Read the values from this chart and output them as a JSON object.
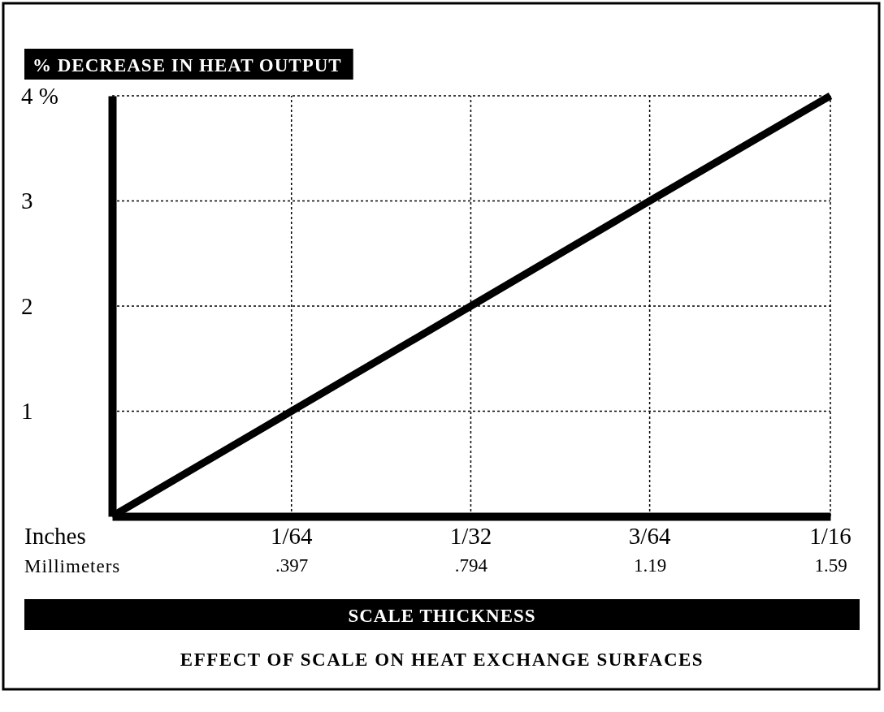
{
  "chart_data": {
    "type": "line",
    "title": "EFFECT OF SCALE ON HEAT EXCHANGE SURFACES",
    "ylabel": "% DECREASE IN HEAT OUTPUT",
    "xlabel": "SCALE THICKNESS",
    "annotations": [
      "Inches",
      "Millimeters",
      "1/64",
      "1/32",
      "3/64",
      "1/16"
    ],
    "x": [
      0,
      0.397,
      0.794,
      1.19,
      1.59
    ],
    "series": [
      {
        "color": "#000000",
        "values": [
          0,
          1,
          2,
          3,
          4
        ]
      }
    ],
    "xlim": [
      0,
      1.59
    ],
    "xticks": [
      {
        "value": 0.397,
        "label": ".397"
      },
      {
        "value": 0.794,
        "label": ".794"
      },
      1.19,
      1.59
    ],
    "ylim": [
      0,
      4
    ],
    "yticks": [
      1,
      2,
      3,
      {
        "value": 4,
        "label": "4 %"
      }
    ],
    "grid": true,
    "marker": "none",
    "line_style": "solid"
  }
}
